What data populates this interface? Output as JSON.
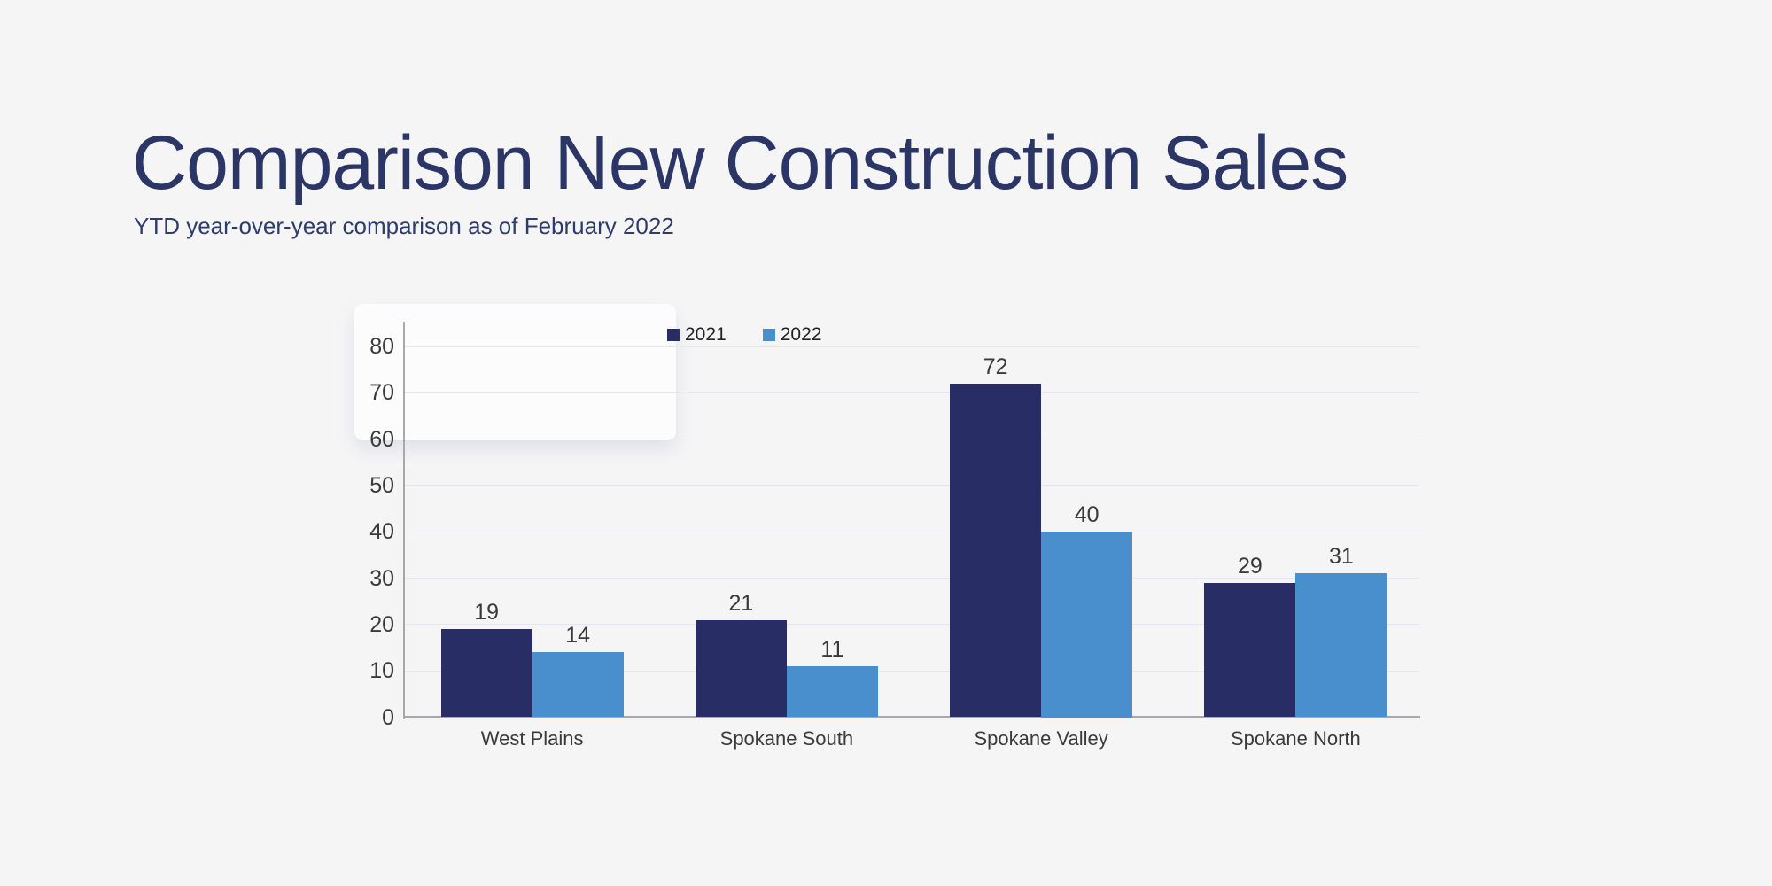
{
  "header": {
    "title": "Comparison New Construction Sales",
    "subtitle": "YTD year-over-year comparison as of February 2022"
  },
  "chart_data": {
    "type": "bar",
    "categories": [
      "West Plains",
      "Spokane South",
      "Spokane Valley",
      "Spokane North"
    ],
    "series": [
      {
        "name": "2021",
        "color": "#282d66",
        "values": [
          19,
          21,
          72,
          29
        ]
      },
      {
        "name": "2022",
        "color": "#4a8fcd",
        "values": [
          14,
          11,
          40,
          31
        ]
      }
    ],
    "ylim": [
      0,
      80
    ],
    "yticks": [
      0,
      10,
      20,
      30,
      40,
      50,
      60,
      70,
      80
    ],
    "grid": true,
    "legend_position": "top",
    "xlabel": "",
    "ylabel": ""
  },
  "colors": {
    "background": "#f5f5f6",
    "title_text": "#2b3566",
    "subtitle_text": "#2e3b6d",
    "axis_text": "#3b3b3b",
    "legend_text": "#232323",
    "gridline": "#e4e7f1",
    "axis_line": "#a8a8ac",
    "series_2021": "#282d66",
    "series_2022": "#4a8fcd"
  }
}
